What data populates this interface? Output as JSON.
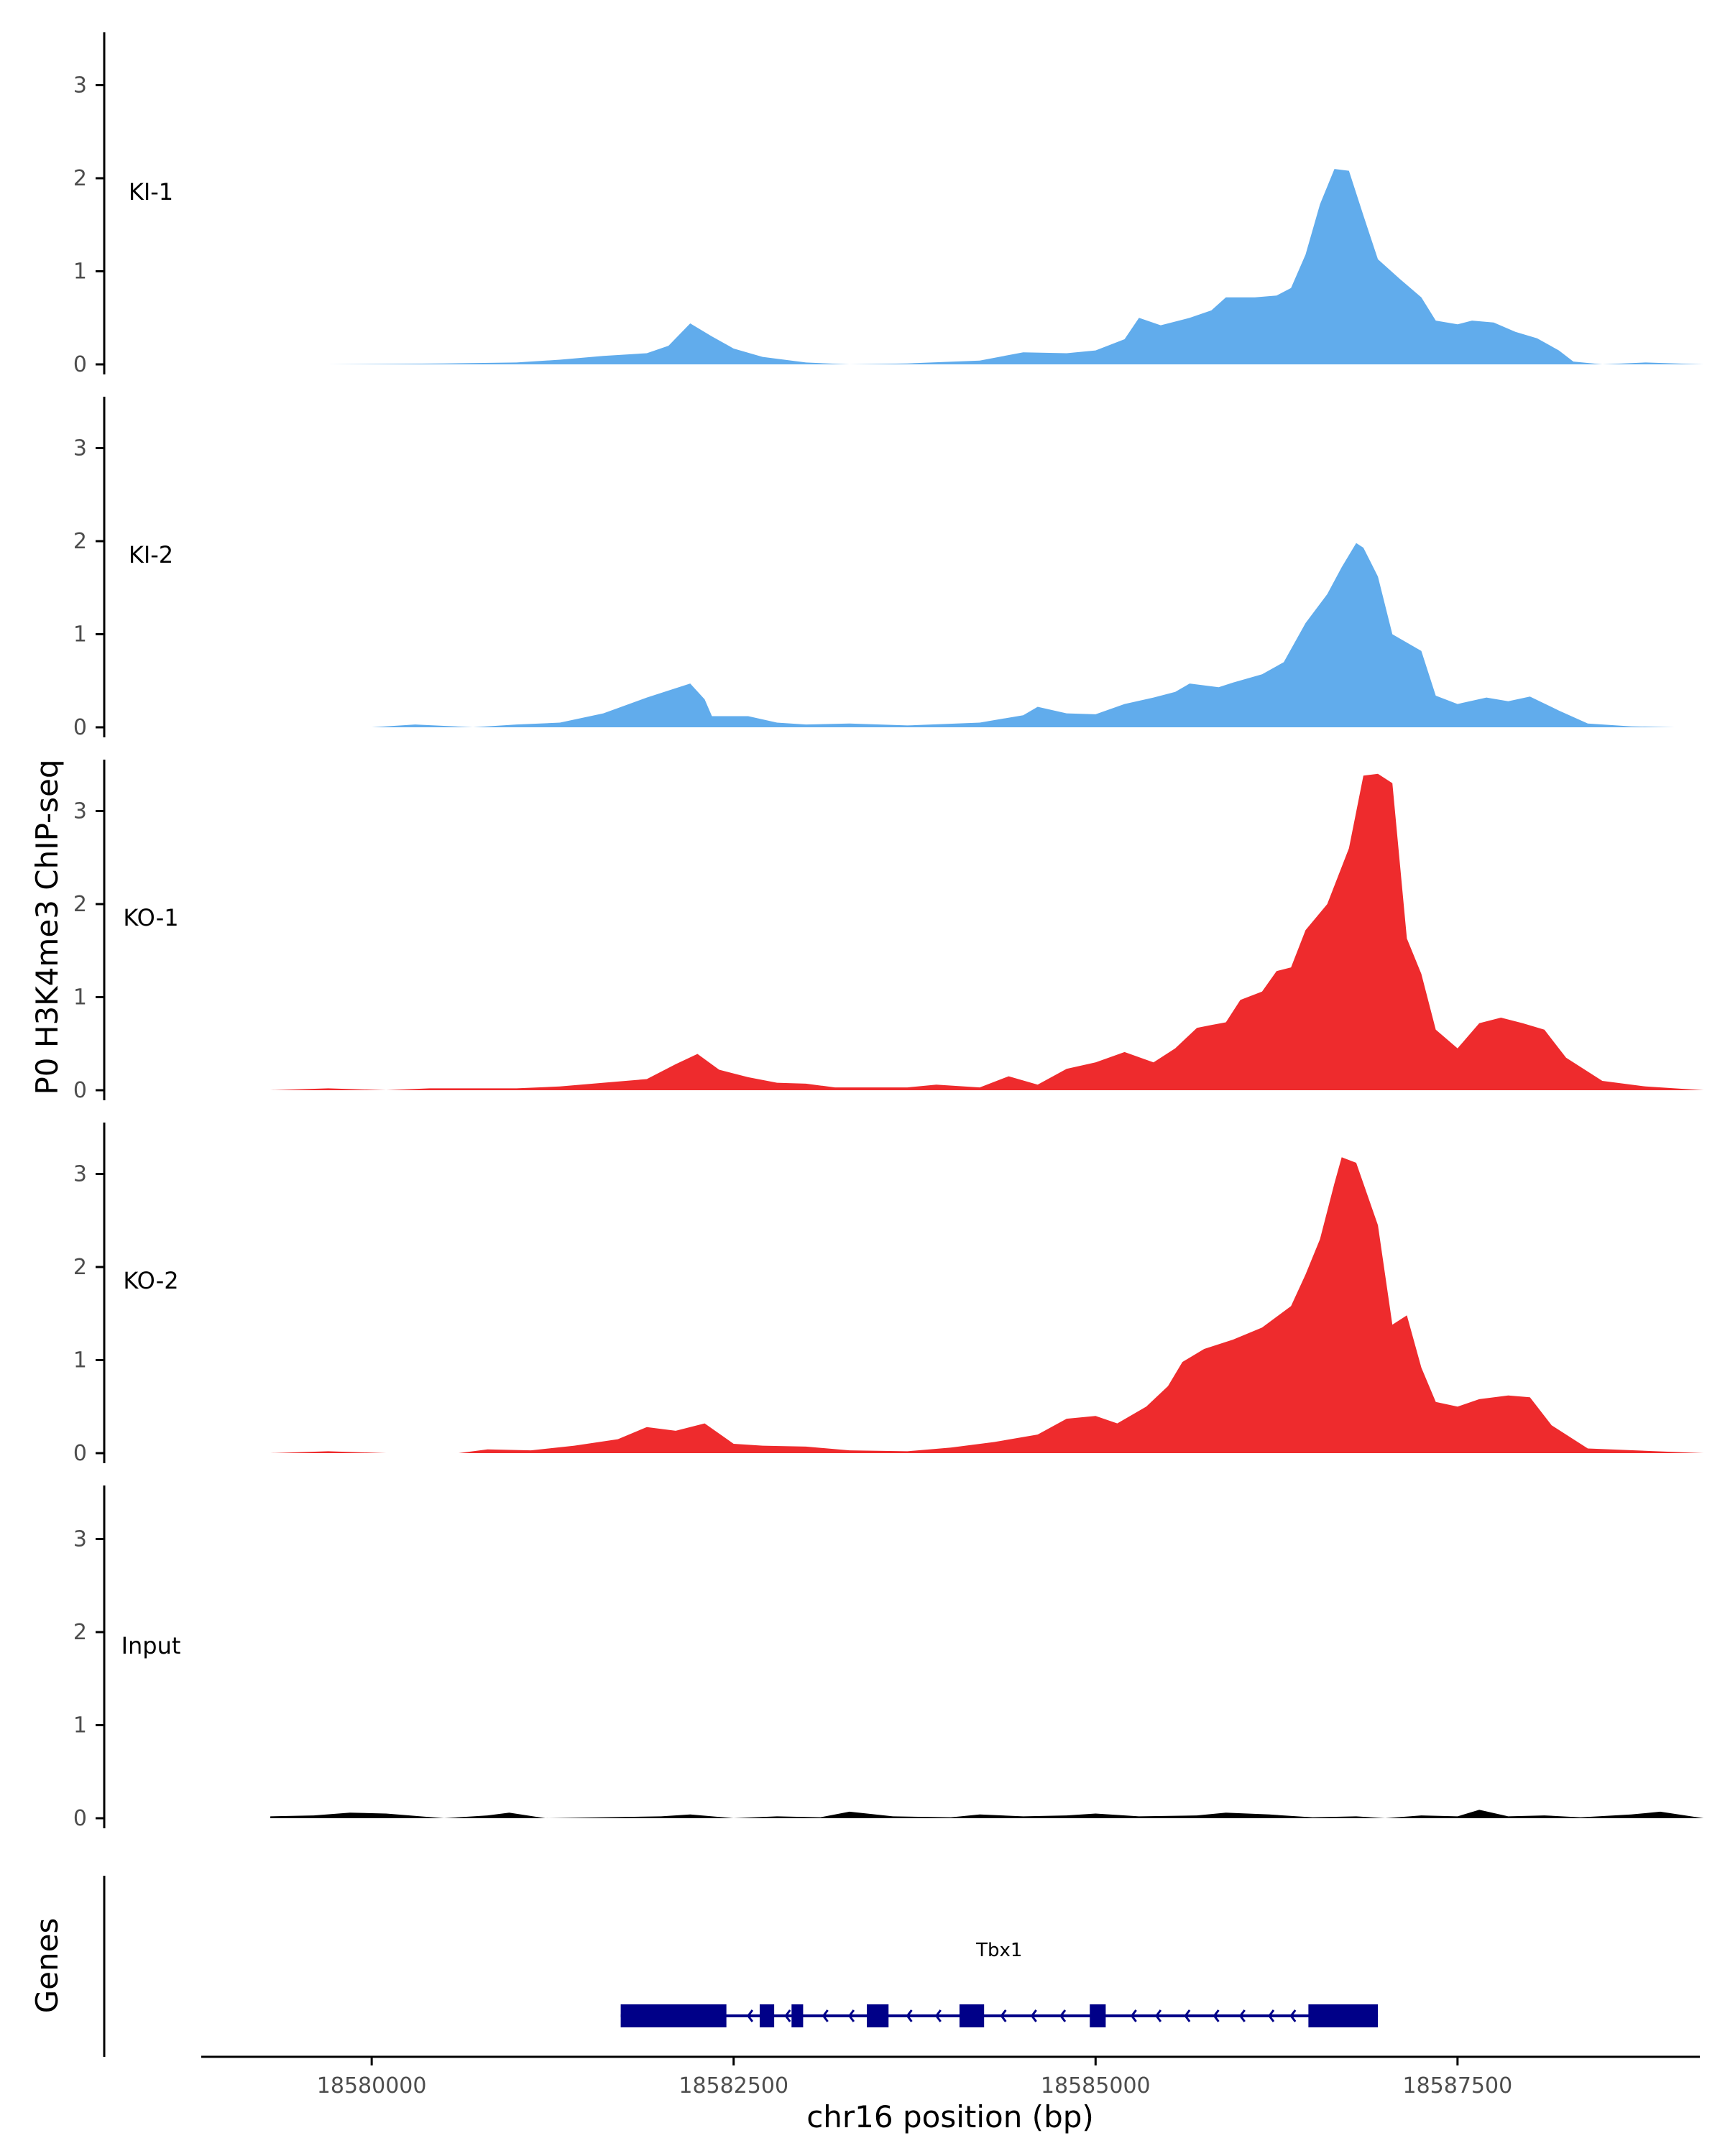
{
  "chart_data": {
    "type": "area",
    "title": "",
    "ylabel": "P0 H3K4me3 ChIP-seq",
    "xlabel": "chr16 position (bp)",
    "xlim": [
      18578500,
      18589000
    ],
    "ylim": [
      0,
      3.5
    ],
    "yticks": [
      0,
      1,
      2,
      3
    ],
    "xticks": [
      18580000,
      18582500,
      18585000,
      18587500
    ],
    "colors": {
      "KI": "#61acec",
      "KO": "#ee2b2d",
      "Input": "#000000",
      "gene": "#000088",
      "axis": "#000000"
    },
    "series": [
      {
        "name": "KI-1",
        "color": "#61acec",
        "points": [
          [
            18579300,
            0.0
          ],
          [
            18579700,
            0.0
          ],
          [
            18580500,
            0.01
          ],
          [
            18581000,
            0.02
          ],
          [
            18581300,
            0.05
          ],
          [
            18581600,
            0.09
          ],
          [
            18581900,
            0.12
          ],
          [
            18582050,
            0.2
          ],
          [
            18582200,
            0.44
          ],
          [
            18582350,
            0.3
          ],
          [
            18582500,
            0.17
          ],
          [
            18582700,
            0.08
          ],
          [
            18583000,
            0.02
          ],
          [
            18583300,
            0.0
          ],
          [
            18583700,
            0.01
          ],
          [
            18584200,
            0.04
          ],
          [
            18584500,
            0.13
          ],
          [
            18584800,
            0.12
          ],
          [
            18585000,
            0.15
          ],
          [
            18585200,
            0.27
          ],
          [
            18585300,
            0.5
          ],
          [
            18585450,
            0.42
          ],
          [
            18585650,
            0.5
          ],
          [
            18585800,
            0.58
          ],
          [
            18585900,
            0.72
          ],
          [
            18586100,
            0.72
          ],
          [
            18586250,
            0.74
          ],
          [
            18586350,
            0.82
          ],
          [
            18586450,
            1.18
          ],
          [
            18586550,
            1.72
          ],
          [
            18586650,
            2.1
          ],
          [
            18586750,
            2.08
          ],
          [
            18586850,
            1.6
          ],
          [
            18586950,
            1.13
          ],
          [
            18587100,
            0.92
          ],
          [
            18587250,
            0.72
          ],
          [
            18587350,
            0.47
          ],
          [
            18587500,
            0.43
          ],
          [
            18587600,
            0.47
          ],
          [
            18587750,
            0.45
          ],
          [
            18587900,
            0.35
          ],
          [
            18588050,
            0.28
          ],
          [
            18588200,
            0.15
          ],
          [
            18588300,
            0.03
          ],
          [
            18588500,
            0.0
          ],
          [
            18588800,
            0.02
          ],
          [
            18589200,
            0.0
          ]
        ]
      },
      {
        "name": "KI-2",
        "color": "#61acec",
        "points": [
          [
            18579300,
            0.0
          ],
          [
            18580000,
            0.0
          ],
          [
            18580300,
            0.03
          ],
          [
            18580700,
            0.0
          ],
          [
            18581000,
            0.03
          ],
          [
            18581300,
            0.05
          ],
          [
            18581600,
            0.15
          ],
          [
            18581900,
            0.32
          ],
          [
            18582100,
            0.42
          ],
          [
            18582200,
            0.47
          ],
          [
            18582300,
            0.3
          ],
          [
            18582350,
            0.12
          ],
          [
            18582600,
            0.12
          ],
          [
            18582800,
            0.05
          ],
          [
            18583000,
            0.03
          ],
          [
            18583300,
            0.04
          ],
          [
            18583700,
            0.02
          ],
          [
            18584200,
            0.05
          ],
          [
            18584500,
            0.13
          ],
          [
            18584600,
            0.22
          ],
          [
            18584800,
            0.15
          ],
          [
            18585000,
            0.14
          ],
          [
            18585200,
            0.25
          ],
          [
            18585400,
            0.32
          ],
          [
            18585550,
            0.38
          ],
          [
            18585650,
            0.47
          ],
          [
            18585850,
            0.43
          ],
          [
            18585950,
            0.48
          ],
          [
            18586150,
            0.57
          ],
          [
            18586300,
            0.7
          ],
          [
            18586450,
            1.12
          ],
          [
            18586600,
            1.43
          ],
          [
            18586700,
            1.72
          ],
          [
            18586800,
            1.98
          ],
          [
            18586850,
            1.93
          ],
          [
            18586950,
            1.62
          ],
          [
            18587050,
            1.0
          ],
          [
            18587250,
            0.82
          ],
          [
            18587350,
            0.34
          ],
          [
            18587500,
            0.25
          ],
          [
            18587700,
            0.32
          ],
          [
            18587850,
            0.28
          ],
          [
            18588000,
            0.33
          ],
          [
            18588200,
            0.18
          ],
          [
            18588400,
            0.04
          ],
          [
            18588700,
            0.01
          ],
          [
            18589000,
            0.0
          ]
        ]
      },
      {
        "name": "KO-1",
        "color": "#ee2b2d",
        "points": [
          [
            18579300,
            0.0
          ],
          [
            18579700,
            0.02
          ],
          [
            18580100,
            0.0
          ],
          [
            18580400,
            0.02
          ],
          [
            18581000,
            0.02
          ],
          [
            18581300,
            0.04
          ],
          [
            18581600,
            0.08
          ],
          [
            18581900,
            0.12
          ],
          [
            18582100,
            0.28
          ],
          [
            18582250,
            0.39
          ],
          [
            18582400,
            0.22
          ],
          [
            18582600,
            0.14
          ],
          [
            18582800,
            0.08
          ],
          [
            18583000,
            0.07
          ],
          [
            18583200,
            0.03
          ],
          [
            18583700,
            0.03
          ],
          [
            18583900,
            0.06
          ],
          [
            18584200,
            0.03
          ],
          [
            18584400,
            0.15
          ],
          [
            18584600,
            0.06
          ],
          [
            18584800,
            0.23
          ],
          [
            18585000,
            0.3
          ],
          [
            18585200,
            0.41
          ],
          [
            18585400,
            0.3
          ],
          [
            18585550,
            0.45
          ],
          [
            18585700,
            0.67
          ],
          [
            18585800,
            0.7
          ],
          [
            18585900,
            0.73
          ],
          [
            18586000,
            0.97
          ],
          [
            18586150,
            1.06
          ],
          [
            18586250,
            1.28
          ],
          [
            18586350,
            1.32
          ],
          [
            18586450,
            1.72
          ],
          [
            18586600,
            2.0
          ],
          [
            18586750,
            2.6
          ],
          [
            18586850,
            3.38
          ],
          [
            18586950,
            3.4
          ],
          [
            18587050,
            3.3
          ],
          [
            18587150,
            1.63
          ],
          [
            18587250,
            1.25
          ],
          [
            18587350,
            0.65
          ],
          [
            18587500,
            0.45
          ],
          [
            18587650,
            0.72
          ],
          [
            18587800,
            0.78
          ],
          [
            18587950,
            0.72
          ],
          [
            18588100,
            0.65
          ],
          [
            18588250,
            0.35
          ],
          [
            18588500,
            0.1
          ],
          [
            18588800,
            0.04
          ],
          [
            18589200,
            0.0
          ]
        ]
      },
      {
        "name": "KO-2",
        "color": "#ee2b2d",
        "points": [
          [
            18579300,
            0.0
          ],
          [
            18579700,
            0.02
          ],
          [
            18580100,
            0.0
          ],
          [
            18580600,
            0.0
          ],
          [
            18580800,
            0.04
          ],
          [
            18581100,
            0.03
          ],
          [
            18581400,
            0.08
          ],
          [
            18581700,
            0.15
          ],
          [
            18581900,
            0.28
          ],
          [
            18582100,
            0.24
          ],
          [
            18582300,
            0.32
          ],
          [
            18582500,
            0.1
          ],
          [
            18582700,
            0.08
          ],
          [
            18583000,
            0.07
          ],
          [
            18583300,
            0.03
          ],
          [
            18583700,
            0.02
          ],
          [
            18584000,
            0.06
          ],
          [
            18584300,
            0.12
          ],
          [
            18584600,
            0.2
          ],
          [
            18584800,
            0.37
          ],
          [
            18585000,
            0.4
          ],
          [
            18585150,
            0.32
          ],
          [
            18585350,
            0.5
          ],
          [
            18585500,
            0.72
          ],
          [
            18585600,
            0.98
          ],
          [
            18585750,
            1.12
          ],
          [
            18585950,
            1.22
          ],
          [
            18586150,
            1.35
          ],
          [
            18586350,
            1.58
          ],
          [
            18586450,
            1.92
          ],
          [
            18586550,
            2.3
          ],
          [
            18586650,
            2.9
          ],
          [
            18586700,
            3.18
          ],
          [
            18586800,
            3.12
          ],
          [
            18586950,
            2.45
          ],
          [
            18587050,
            1.38
          ],
          [
            18587150,
            1.48
          ],
          [
            18587250,
            0.92
          ],
          [
            18587350,
            0.55
          ],
          [
            18587500,
            0.5
          ],
          [
            18587650,
            0.58
          ],
          [
            18587850,
            0.62
          ],
          [
            18588000,
            0.6
          ],
          [
            18588150,
            0.3
          ],
          [
            18588400,
            0.05
          ],
          [
            18589200,
            0.0
          ]
        ]
      },
      {
        "name": "Input",
        "color": "#000000",
        "points": [
          [
            18579300,
            0.02
          ],
          [
            18579600,
            0.03
          ],
          [
            18579850,
            0.06
          ],
          [
            18580100,
            0.05
          ],
          [
            18580500,
            0.0
          ],
          [
            18580800,
            0.03
          ],
          [
            18580950,
            0.06
          ],
          [
            18581200,
            0.0
          ],
          [
            18581600,
            0.01
          ],
          [
            18582000,
            0.02
          ],
          [
            18582200,
            0.04
          ],
          [
            18582500,
            0.0
          ],
          [
            18582800,
            0.02
          ],
          [
            18583100,
            0.01
          ],
          [
            18583300,
            0.07
          ],
          [
            18583600,
            0.02
          ],
          [
            18584000,
            0.01
          ],
          [
            18584200,
            0.04
          ],
          [
            18584500,
            0.02
          ],
          [
            18584800,
            0.03
          ],
          [
            18585000,
            0.05
          ],
          [
            18585300,
            0.02
          ],
          [
            18585700,
            0.03
          ],
          [
            18585900,
            0.06
          ],
          [
            18586200,
            0.04
          ],
          [
            18586500,
            0.01
          ],
          [
            18586800,
            0.02
          ],
          [
            18587000,
            0.0
          ],
          [
            18587250,
            0.03
          ],
          [
            18587500,
            0.02
          ],
          [
            18587650,
            0.09
          ],
          [
            18587850,
            0.02
          ],
          [
            18588100,
            0.03
          ],
          [
            18588350,
            0.01
          ],
          [
            18588700,
            0.04
          ],
          [
            18588900,
            0.07
          ],
          [
            18589200,
            0.0
          ]
        ]
      }
    ],
    "genes": [
      {
        "name": "Tbx1",
        "start": 18581720,
        "end": 18586950,
        "strand": "-",
        "exons": [
          [
            18581720,
            18582450
          ],
          [
            18582680,
            18582780
          ],
          [
            18582900,
            18582980
          ],
          [
            18583420,
            18583570
          ],
          [
            18584060,
            18584230
          ],
          [
            18584960,
            18585070
          ],
          [
            18586470,
            18586950
          ]
        ],
        "arrow_positions": [
          18582600,
          18582860,
          18583120,
          18583300,
          18583700,
          18583900,
          18584350,
          18584560,
          18584760,
          18585250,
          18585420,
          18585620,
          18585820,
          18586000,
          18586200,
          18586350
        ]
      }
    ],
    "gene_panel_label": "Genes"
  }
}
